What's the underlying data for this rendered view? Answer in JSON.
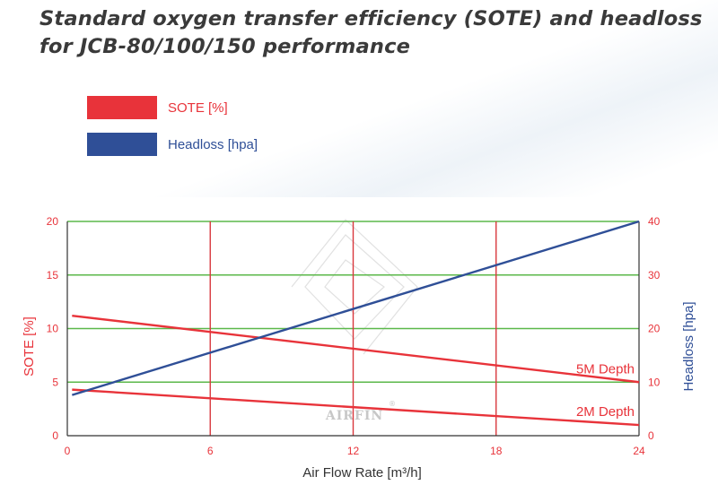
{
  "chart_data": {
    "type": "line",
    "title_lines": [
      "Standard oxygen transfer efficiency (SOTE) and headloss",
      "for JCB-80/100/150 performance"
    ],
    "xlabel": "Air Flow Rate [m³/h]",
    "ylabel_left": "SOTE [%]",
    "ylabel_right": "Headloss [hpa]",
    "x_ticks": [
      "0",
      "6",
      "12",
      "18",
      "24"
    ],
    "y_left_ticks": [
      "0",
      "5",
      "10",
      "15",
      "20"
    ],
    "y_right_ticks": [
      "0",
      "10",
      "20",
      "30",
      "40"
    ],
    "xlim": [
      0,
      24
    ],
    "ylim_left": [
      0,
      20
    ],
    "ylim_right": [
      0,
      40
    ],
    "grid": true,
    "legend_position": "top-left",
    "legend": [
      {
        "label": "SOTE [%]",
        "color": "#e8333a"
      },
      {
        "label": "Headloss [hpa]",
        "color": "#2f4f97"
      }
    ],
    "series": [
      {
        "name": "5M Depth",
        "axis": "left",
        "color": "#e8333a",
        "x": [
          0.2,
          24
        ],
        "y": [
          11.2,
          5.0
        ]
      },
      {
        "name": "2M Depth",
        "axis": "left",
        "color": "#e8333a",
        "x": [
          0.2,
          24
        ],
        "y": [
          4.3,
          1.0
        ]
      },
      {
        "axis": "right",
        "color": "#2f4f97",
        "x": [
          0.2,
          24
        ],
        "y": [
          7.6,
          40.0
        ]
      }
    ],
    "watermark": "AIRFIN"
  },
  "colors": {
    "grid_horizontal": "#5bb84a",
    "grid_vertical": "#d9383e",
    "axis_line": "#333333",
    "tick_text_left": "#e8333a",
    "tick_text_right": "#e8333a",
    "ylabel_left_color": "#e8333a",
    "ylabel_right_color": "#2f4f97",
    "title_color": "#3a3a3a"
  }
}
